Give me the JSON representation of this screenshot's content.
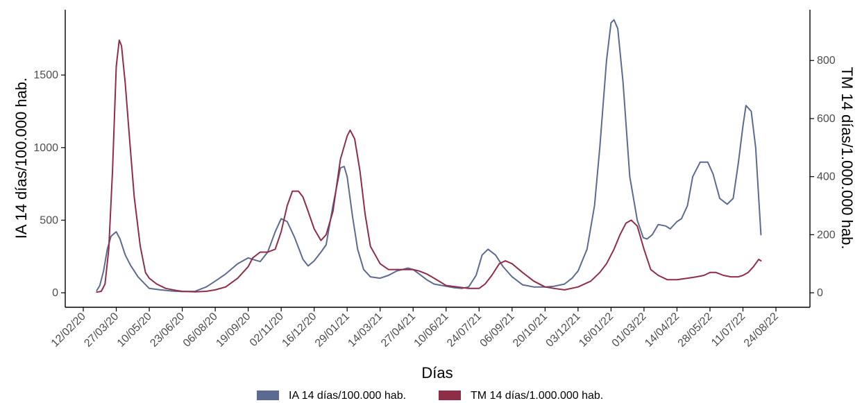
{
  "chart_data": {
    "type": "line",
    "xlabel": "Días",
    "ylabel_left": "IA 14 días/100.000 hab.",
    "ylabel_right": "TM 14 días/1.000.000 hab.",
    "x_tick_labels": [
      "12/02/20",
      "27/03/20",
      "10/05/20",
      "23/06/20",
      "06/08/20",
      "19/09/20",
      "02/11/20",
      "16/12/20",
      "29/01/21",
      "14/03/21",
      "27/04/21",
      "10/06/21",
      "24/07/21",
      "06/09/21",
      "20/10/21",
      "03/12/21",
      "16/01/22",
      "01/03/22",
      "14/04/22",
      "28/05/22",
      "11/07/22",
      "24/08/22"
    ],
    "y_left_ticks": [
      0,
      500,
      1000,
      1500
    ],
    "y_left_range": [
      -100,
      1950
    ],
    "y_right_ticks": [
      0,
      200,
      400,
      600,
      800
    ],
    "y_right_range": [
      -50,
      975
    ],
    "grid": false,
    "legend_position": "bottom",
    "colors": {
      "ia": "#5a6a91",
      "tm": "#8f2d47"
    },
    "series": [
      {
        "name": "IA 14 días/100.000 hab.",
        "axis": "left",
        "color": "#5a6a91",
        "x": [
          "2020-03-01",
          "2020-03-05",
          "2020-03-10",
          "2020-03-15",
          "2020-03-20",
          "2020-03-27",
          "2020-04-01",
          "2020-04-08",
          "2020-04-15",
          "2020-04-25",
          "2020-05-10",
          "2020-05-25",
          "2020-06-10",
          "2020-06-23",
          "2020-07-10",
          "2020-07-25",
          "2020-08-06",
          "2020-08-20",
          "2020-09-05",
          "2020-09-19",
          "2020-09-25",
          "2020-10-05",
          "2020-10-15",
          "2020-10-25",
          "2020-11-02",
          "2020-11-10",
          "2020-11-20",
          "2020-12-01",
          "2020-12-08",
          "2020-12-16",
          "2020-12-25",
          "2021-01-01",
          "2021-01-10",
          "2021-01-20",
          "2021-01-25",
          "2021-01-29",
          "2021-02-05",
          "2021-02-12",
          "2021-02-20",
          "2021-03-01",
          "2021-03-14",
          "2021-03-25",
          "2021-04-05",
          "2021-04-20",
          "2021-04-27",
          "2021-05-05",
          "2021-05-15",
          "2021-05-25",
          "2021-06-10",
          "2021-06-20",
          "2021-07-01",
          "2021-07-10",
          "2021-07-20",
          "2021-07-28",
          "2021-08-05",
          "2021-08-15",
          "2021-08-25",
          "2021-09-06",
          "2021-09-20",
          "2021-10-05",
          "2021-10-20",
          "2021-11-01",
          "2021-11-15",
          "2021-11-25",
          "2021-12-03",
          "2021-12-15",
          "2021-12-25",
          "2022-01-01",
          "2022-01-10",
          "2022-01-16",
          "2022-01-20",
          "2022-01-25",
          "2022-02-01",
          "2022-02-10",
          "2022-02-20",
          "2022-02-28",
          "2022-03-05",
          "2022-03-12",
          "2022-03-20",
          "2022-03-30",
          "2022-04-05",
          "2022-04-14",
          "2022-04-20",
          "2022-04-28",
          "2022-05-05",
          "2022-05-15",
          "2022-05-25",
          "2022-06-01",
          "2022-06-10",
          "2022-06-20",
          "2022-06-28",
          "2022-07-05",
          "2022-07-11",
          "2022-07-15",
          "2022-07-22",
          "2022-07-28",
          "2022-08-04"
        ],
        "y": [
          15,
          50,
          150,
          300,
          390,
          420,
          370,
          260,
          190,
          110,
          30,
          20,
          12,
          8,
          10,
          40,
          80,
          130,
          200,
          240,
          230,
          215,
          280,
          420,
          510,
          490,
          380,
          230,
          185,
          220,
          280,
          330,
          600,
          860,
          870,
          800,
          530,
          300,
          160,
          110,
          100,
          120,
          150,
          170,
          160,
          130,
          90,
          60,
          45,
          35,
          30,
          40,
          120,
          260,
          300,
          260,
          180,
          110,
          55,
          40,
          40,
          45,
          60,
          100,
          150,
          300,
          600,
          1000,
          1600,
          1860,
          1880,
          1820,
          1450,
          800,
          500,
          380,
          370,
          400,
          470,
          460,
          440,
          490,
          510,
          600,
          800,
          900,
          900,
          820,
          650,
          610,
          650,
          900,
          1150,
          1290,
          1250,
          1000,
          400
        ]
      },
      {
        "name": "TM 14 días/1.000.000 hab.",
        "axis": "right",
        "color": "#8f2d47",
        "x": [
          "2020-03-01",
          "2020-03-07",
          "2020-03-12",
          "2020-03-17",
          "2020-03-22",
          "2020-03-27",
          "2020-03-31",
          "2020-04-03",
          "2020-04-08",
          "2020-04-14",
          "2020-04-20",
          "2020-04-28",
          "2020-05-05",
          "2020-05-10",
          "2020-05-20",
          "2020-06-01",
          "2020-06-15",
          "2020-06-23",
          "2020-07-10",
          "2020-07-25",
          "2020-08-06",
          "2020-08-20",
          "2020-09-05",
          "2020-09-19",
          "2020-09-25",
          "2020-10-05",
          "2020-10-15",
          "2020-10-25",
          "2020-11-02",
          "2020-11-10",
          "2020-11-17",
          "2020-11-25",
          "2020-12-01",
          "2020-12-08",
          "2020-12-16",
          "2020-12-25",
          "2021-01-01",
          "2021-01-10",
          "2021-01-20",
          "2021-01-29",
          "2021-02-02",
          "2021-02-08",
          "2021-02-15",
          "2021-02-22",
          "2021-03-01",
          "2021-03-14",
          "2021-03-25",
          "2021-04-05",
          "2021-04-20",
          "2021-04-27",
          "2021-05-05",
          "2021-05-15",
          "2021-05-25",
          "2021-06-10",
          "2021-06-25",
          "2021-07-10",
          "2021-07-24",
          "2021-08-01",
          "2021-08-10",
          "2021-08-20",
          "2021-08-28",
          "2021-09-06",
          "2021-09-20",
          "2021-10-05",
          "2021-10-20",
          "2021-11-01",
          "2021-11-15",
          "2021-12-03",
          "2021-12-20",
          "2022-01-01",
          "2022-01-10",
          "2022-01-20",
          "2022-01-28",
          "2022-02-05",
          "2022-02-12",
          "2022-02-20",
          "2022-03-01",
          "2022-03-10",
          "2022-03-20",
          "2022-04-01",
          "2022-04-14",
          "2022-04-28",
          "2022-05-10",
          "2022-05-20",
          "2022-05-28",
          "2022-06-05",
          "2022-06-15",
          "2022-06-25",
          "2022-07-05",
          "2022-07-11",
          "2022-07-18",
          "2022-07-25",
          "2022-08-01",
          "2022-08-04"
        ],
        "y": [
          2,
          5,
          30,
          150,
          420,
          780,
          870,
          850,
          720,
          520,
          330,
          160,
          70,
          50,
          30,
          15,
          8,
          5,
          3,
          5,
          10,
          20,
          50,
          90,
          120,
          140,
          140,
          150,
          210,
          300,
          350,
          350,
          330,
          280,
          220,
          180,
          200,
          280,
          460,
          540,
          560,
          530,
          420,
          270,
          160,
          100,
          80,
          80,
          80,
          80,
          75,
          65,
          50,
          25,
          20,
          15,
          15,
          30,
          60,
          100,
          110,
          100,
          70,
          40,
          20,
          15,
          10,
          20,
          40,
          70,
          100,
          150,
          200,
          240,
          250,
          230,
          150,
          80,
          60,
          45,
          45,
          50,
          55,
          60,
          70,
          70,
          60,
          55,
          55,
          60,
          70,
          90,
          115,
          110
        ]
      }
    ]
  }
}
